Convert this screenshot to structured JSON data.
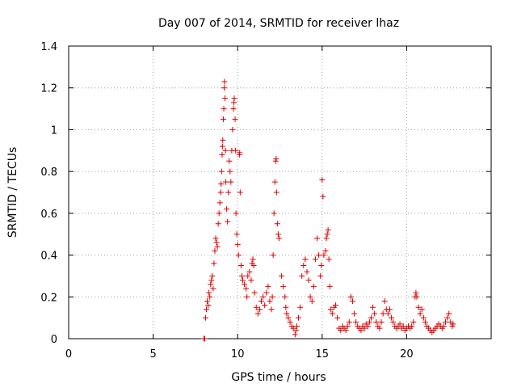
{
  "chart_data": {
    "type": "scatter",
    "title": "Day 007 of 2014, SRMTID for receiver lhaz",
    "xlabel": "GPS time / hours",
    "ylabel": "SRMTID / TECUs",
    "xlim": [
      0,
      25
    ],
    "ylim": [
      0,
      1.4
    ],
    "xticks": [
      "0",
      "5",
      "10",
      "15",
      "20"
    ],
    "yticks": [
      "0",
      "0.2",
      "0.4",
      "0.6",
      "0.8",
      "1",
      "1.2",
      "1.4"
    ],
    "xtick_values": [
      0,
      5,
      10,
      15,
      20
    ],
    "ytick_values": [
      0,
      0.2,
      0.4,
      0.6,
      0.8,
      1.0,
      1.2,
      1.4
    ],
    "grid": true,
    "marker": "plus",
    "color": "#dd0000",
    "series": [
      {
        "name": "SRMTID",
        "points": [
          [
            8.0,
            0.0
          ],
          [
            8.05,
            0.0
          ],
          [
            8.1,
            0.1
          ],
          [
            8.15,
            0.14
          ],
          [
            8.2,
            0.18
          ],
          [
            8.25,
            0.16
          ],
          [
            8.3,
            0.22
          ],
          [
            8.35,
            0.2
          ],
          [
            8.4,
            0.26
          ],
          [
            8.45,
            0.28
          ],
          [
            8.5,
            0.3
          ],
          [
            8.55,
            0.24
          ],
          [
            8.6,
            0.36
          ],
          [
            8.65,
            0.42
          ],
          [
            8.7,
            0.48
          ],
          [
            8.75,
            0.46
          ],
          [
            8.8,
            0.44
          ],
          [
            8.85,
            0.55
          ],
          [
            8.9,
            0.6
          ],
          [
            8.95,
            0.65
          ],
          [
            9.0,
            0.7
          ],
          [
            9.02,
            0.74
          ],
          [
            9.05,
            0.8
          ],
          [
            9.08,
            0.88
          ],
          [
            9.1,
            0.92
          ],
          [
            9.12,
            0.95
          ],
          [
            9.15,
            1.05
          ],
          [
            9.18,
            1.1
          ],
          [
            9.2,
            1.2
          ],
          [
            9.22,
            1.23
          ],
          [
            9.25,
            1.15
          ],
          [
            9.28,
            0.9
          ],
          [
            9.3,
            0.75
          ],
          [
            9.35,
            0.62
          ],
          [
            9.4,
            0.56
          ],
          [
            9.45,
            0.7
          ],
          [
            9.5,
            0.85
          ],
          [
            9.55,
            0.8
          ],
          [
            9.6,
            0.75
          ],
          [
            9.65,
            0.9
          ],
          [
            9.7,
            1.0
          ],
          [
            9.75,
            1.1
          ],
          [
            9.78,
            1.13
          ],
          [
            9.8,
            1.15
          ],
          [
            9.85,
            1.05
          ],
          [
            9.88,
            0.9
          ],
          [
            9.9,
            0.6
          ],
          [
            9.95,
            0.5
          ],
          [
            10.0,
            0.45
          ],
          [
            10.05,
            0.4
          ],
          [
            10.1,
            0.88
          ],
          [
            10.12,
            0.89
          ],
          [
            10.15,
            0.7
          ],
          [
            10.2,
            0.35
          ],
          [
            10.25,
            0.3
          ],
          [
            10.3,
            0.28
          ],
          [
            10.4,
            0.26
          ],
          [
            10.5,
            0.24
          ],
          [
            10.55,
            0.2
          ],
          [
            10.6,
            0.3
          ],
          [
            10.7,
            0.32
          ],
          [
            10.8,
            0.28
          ],
          [
            10.85,
            0.36
          ],
          [
            10.9,
            0.38
          ],
          [
            10.95,
            0.35
          ],
          [
            11.0,
            0.22
          ],
          [
            11.1,
            0.15
          ],
          [
            11.2,
            0.12
          ],
          [
            11.3,
            0.14
          ],
          [
            11.4,
            0.18
          ],
          [
            11.5,
            0.2
          ],
          [
            11.6,
            0.16
          ],
          [
            11.7,
            0.22
          ],
          [
            11.8,
            0.25
          ],
          [
            11.9,
            0.18
          ],
          [
            12.0,
            0.14
          ],
          [
            12.05,
            0.2
          ],
          [
            12.1,
            0.4
          ],
          [
            12.15,
            0.6
          ],
          [
            12.2,
            0.75
          ],
          [
            12.25,
            0.85
          ],
          [
            12.28,
            0.86
          ],
          [
            12.3,
            0.7
          ],
          [
            12.35,
            0.55
          ],
          [
            12.4,
            0.5
          ],
          [
            12.45,
            0.48
          ],
          [
            12.6,
            0.3
          ],
          [
            12.7,
            0.25
          ],
          [
            12.8,
            0.2
          ],
          [
            12.85,
            0.15
          ],
          [
            12.9,
            0.12
          ],
          [
            13.0,
            0.1
          ],
          [
            13.1,
            0.08
          ],
          [
            13.2,
            0.06
          ],
          [
            13.3,
            0.05
          ],
          [
            13.4,
            0.02
          ],
          [
            13.45,
            0.04
          ],
          [
            13.5,
            0.06
          ],
          [
            13.6,
            0.1
          ],
          [
            13.7,
            0.15
          ],
          [
            13.8,
            0.3
          ],
          [
            13.9,
            0.35
          ],
          [
            14.0,
            0.38
          ],
          [
            14.1,
            0.32
          ],
          [
            14.2,
            0.28
          ],
          [
            14.3,
            0.2
          ],
          [
            14.4,
            0.18
          ],
          [
            14.5,
            0.25
          ],
          [
            14.6,
            0.38
          ],
          [
            14.7,
            0.48
          ],
          [
            14.8,
            0.4
          ],
          [
            14.9,
            0.3
          ],
          [
            14.95,
            0.35
          ],
          [
            15.0,
            0.76
          ],
          [
            15.05,
            0.68
          ],
          [
            15.1,
            0.4
          ],
          [
            15.2,
            0.42
          ],
          [
            15.25,
            0.48
          ],
          [
            15.3,
            0.5
          ],
          [
            15.35,
            0.52
          ],
          [
            15.4,
            0.38
          ],
          [
            15.45,
            0.25
          ],
          [
            15.5,
            0.14
          ],
          [
            15.6,
            0.12
          ],
          [
            15.7,
            0.15
          ],
          [
            15.8,
            0.16
          ],
          [
            15.9,
            0.1
          ],
          [
            16.0,
            0.05
          ],
          [
            16.1,
            0.04
          ],
          [
            16.2,
            0.06
          ],
          [
            16.3,
            0.05
          ],
          [
            16.4,
            0.04
          ],
          [
            16.5,
            0.06
          ],
          [
            16.6,
            0.08
          ],
          [
            16.7,
            0.2
          ],
          [
            16.8,
            0.18
          ],
          [
            16.9,
            0.12
          ],
          [
            17.0,
            0.08
          ],
          [
            17.1,
            0.06
          ],
          [
            17.2,
            0.05
          ],
          [
            17.3,
            0.04
          ],
          [
            17.4,
            0.06
          ],
          [
            17.5,
            0.05
          ],
          [
            17.6,
            0.07
          ],
          [
            17.7,
            0.06
          ],
          [
            17.8,
            0.08
          ],
          [
            17.9,
            0.1
          ],
          [
            18.0,
            0.15
          ],
          [
            18.1,
            0.12
          ],
          [
            18.2,
            0.08
          ],
          [
            18.3,
            0.06
          ],
          [
            18.4,
            0.05
          ],
          [
            18.5,
            0.08
          ],
          [
            18.6,
            0.12
          ],
          [
            18.7,
            0.18
          ],
          [
            18.8,
            0.14
          ],
          [
            18.9,
            0.12
          ],
          [
            19.0,
            0.14
          ],
          [
            19.1,
            0.1
          ],
          [
            19.2,
            0.08
          ],
          [
            19.3,
            0.06
          ],
          [
            19.4,
            0.05
          ],
          [
            19.5,
            0.06
          ],
          [
            19.6,
            0.07
          ],
          [
            19.7,
            0.05
          ],
          [
            19.8,
            0.06
          ],
          [
            19.9,
            0.04
          ],
          [
            20.0,
            0.05
          ],
          [
            20.1,
            0.06
          ],
          [
            20.2,
            0.05
          ],
          [
            20.3,
            0.06
          ],
          [
            20.4,
            0.08
          ],
          [
            20.5,
            0.2
          ],
          [
            20.55,
            0.22
          ],
          [
            20.6,
            0.2
          ],
          [
            20.7,
            0.15
          ],
          [
            20.8,
            0.12
          ],
          [
            20.9,
            0.14
          ],
          [
            21.0,
            0.1
          ],
          [
            21.1,
            0.08
          ],
          [
            21.2,
            0.06
          ],
          [
            21.3,
            0.05
          ],
          [
            21.4,
            0.04
          ],
          [
            21.5,
            0.03
          ],
          [
            21.6,
            0.04
          ],
          [
            21.7,
            0.05
          ],
          [
            21.8,
            0.06
          ],
          [
            21.9,
            0.07
          ],
          [
            22.0,
            0.06
          ],
          [
            22.1,
            0.05
          ],
          [
            22.2,
            0.06
          ],
          [
            22.3,
            0.08
          ],
          [
            22.4,
            0.1
          ],
          [
            22.5,
            0.12
          ],
          [
            22.6,
            0.08
          ],
          [
            22.7,
            0.06
          ],
          [
            22.75,
            0.07
          ]
        ]
      }
    ]
  }
}
